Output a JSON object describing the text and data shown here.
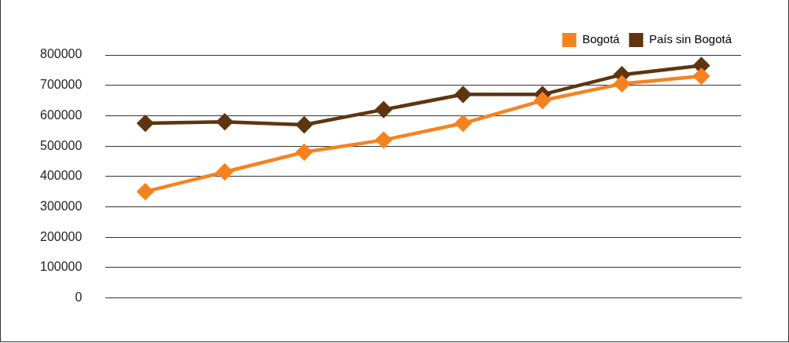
{
  "chart_data": {
    "type": "line",
    "categories": [
      null,
      null,
      null,
      null,
      null,
      null,
      null,
      null
    ],
    "series": [
      {
        "name": "Bogotá",
        "color": "#f6821f",
        "values": [
          350000,
          415000,
          480000,
          520000,
          575000,
          650000,
          705000,
          730000
        ]
      },
      {
        "name": "País sin Bogotá",
        "color": "#5e3510",
        "values": [
          575000,
          580000,
          570000,
          620000,
          670000,
          670000,
          735000,
          765000
        ]
      }
    ],
    "ylim": [
      0,
      800000
    ],
    "yticks": [
      0,
      100000,
      200000,
      300000,
      400000,
      500000,
      600000,
      700000,
      800000
    ],
    "grid": "y",
    "legend": "top right",
    "marker": "diamond",
    "line_style": "solid"
  }
}
